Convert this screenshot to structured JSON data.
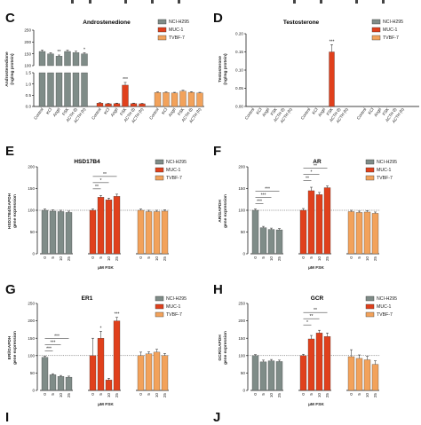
{
  "colors": {
    "NCI-H295": "#7f8c88",
    "MUC-1": "#e0401c",
    "TVBF-7": "#f2a25b"
  },
  "panels": {
    "C": {
      "letter": "C"
    },
    "D": {
      "letter": "D"
    },
    "E": {
      "letter": "E"
    },
    "F": {
      "letter": "F"
    },
    "G": {
      "letter": "G"
    },
    "H": {
      "letter": "H"
    },
    "I": {
      "letter": "I"
    },
    "J": {
      "letter": "J"
    }
  },
  "chart_data": [
    {
      "id": "C",
      "type": "bar",
      "title": "Androstenedione",
      "ylabel": "Androstenedione (ng/mg protein)",
      "axis_break": true,
      "upper_ticks": [
        "250",
        "200",
        "150",
        "100"
      ],
      "lower_ticks": [
        "1.5",
        "1.0",
        "0.5",
        "0.0"
      ],
      "categories": [
        "Control",
        "KCl",
        "AngII",
        "FSK",
        "ACTH (l)",
        "ACTH (h)"
      ],
      "legend": [
        "NCI-H295",
        "MUC-1",
        "TVBF-7"
      ],
      "series": [
        {
          "name": "NCI-H295",
          "values": [
            160,
            150,
            140,
            160,
            155,
            150
          ],
          "errors": [
            6,
            5,
            5,
            6,
            6,
            5
          ],
          "sig": [
            "",
            "",
            "**",
            "",
            "",
            "*"
          ]
        },
        {
          "name": "MUC-1",
          "values": [
            0.15,
            0.12,
            0.13,
            0.95,
            0.13,
            0.12
          ],
          "errors": [
            0.02,
            0.02,
            0.02,
            0.12,
            0.02,
            0.02
          ],
          "sig": [
            "",
            "",
            "",
            "***",
            "",
            ""
          ]
        },
        {
          "name": "TVBF-7",
          "values": [
            0.62,
            0.62,
            0.6,
            0.68,
            0.63,
            0.6
          ],
          "errors": [
            0.03,
            0.03,
            0.03,
            0.04,
            0.03,
            0.03
          ],
          "sig": [
            "",
            "",
            "",
            "",
            "",
            ""
          ]
        }
      ]
    },
    {
      "id": "D",
      "type": "bar",
      "title": "Testosterone",
      "ylabel": "Testosterone (ng/mg protein)",
      "yticks": [
        "0.20",
        "0.15",
        "0.10",
        "0.05",
        "0.00"
      ],
      "ylim": [
        0,
        0.2
      ],
      "categories": [
        "Control",
        "KCl",
        "AngII",
        "FSK",
        "ACTH (l)",
        "ACTH (h)"
      ],
      "legend": [
        "NCI-H295",
        "MUC-1",
        "TVBF-7"
      ],
      "series": [
        {
          "name": "NCI-H295",
          "values": [
            0,
            0,
            0,
            0,
            0,
            0
          ],
          "errors": [
            0,
            0,
            0,
            0,
            0,
            0
          ],
          "sig": [
            "",
            "",
            "",
            "",
            "",
            ""
          ]
        },
        {
          "name": "MUC-1",
          "values": [
            0,
            0,
            0,
            0.15,
            0,
            0
          ],
          "errors": [
            0,
            0,
            0,
            0.02,
            0,
            0
          ],
          "sig": [
            "",
            "",
            "",
            "***",
            "",
            ""
          ]
        },
        {
          "name": "TVBF-7",
          "values": [
            0,
            0,
            0,
            0,
            0,
            0
          ],
          "errors": [
            0,
            0,
            0,
            0,
            0,
            0
          ],
          "sig": [
            "",
            "",
            "",
            "",
            "",
            ""
          ]
        }
      ]
    },
    {
      "id": "E",
      "type": "bar",
      "title": "HSD17B4",
      "ylabel": "HSD17B4/GAPDH gene expression",
      "xlabel": "µM FSK",
      "yticks": [
        "200",
        "150",
        "100",
        "50",
        "0"
      ],
      "ylim": [
        0,
        200
      ],
      "doses": [
        "0",
        "5",
        "10",
        "25"
      ],
      "legend": [
        "NCI-H295",
        "MUC-1",
        "TVBF-7"
      ],
      "series": [
        {
          "name": "NCI-H295",
          "values": [
            100,
            98,
            97,
            95
          ],
          "errors": [
            3,
            3,
            3,
            3
          ]
        },
        {
          "name": "MUC-1",
          "values": [
            100,
            130,
            124,
            132
          ],
          "errors": [
            3,
            4,
            4,
            5
          ]
        },
        {
          "name": "TVBF-7",
          "values": [
            100,
            97,
            97,
            98
          ],
          "errors": [
            3,
            3,
            3,
            3
          ]
        }
      ],
      "brackets": [
        {
          "series": 1,
          "from": 0,
          "to": 1,
          "level": 0,
          "label": "**"
        },
        {
          "series": 1,
          "from": 0,
          "to": 2,
          "level": 1,
          "label": "*"
        },
        {
          "series": 1,
          "from": 0,
          "to": 3,
          "level": 2,
          "label": "**"
        }
      ]
    },
    {
      "id": "F",
      "type": "bar",
      "title": "AR",
      "ylabel": "AR/GAPDH gene expression",
      "xlabel": "µM FSK",
      "yticks": [
        "200",
        "150",
        "100",
        "50",
        "0"
      ],
      "ylim": [
        0,
        200
      ],
      "doses": [
        "0",
        "5",
        "10",
        "25"
      ],
      "legend": [
        "NCI-H295",
        "MUC-1",
        "TVBF-7"
      ],
      "series": [
        {
          "name": "NCI-H295",
          "values": [
            100,
            60,
            56,
            55
          ],
          "errors": [
            3,
            3,
            3,
            3
          ]
        },
        {
          "name": "MUC-1",
          "values": [
            100,
            145,
            136,
            152
          ],
          "errors": [
            4,
            8,
            5,
            4
          ]
        },
        {
          "name": "TVBF-7",
          "values": [
            97,
            95,
            96,
            93
          ],
          "errors": [
            3,
            3,
            3,
            3
          ]
        }
      ],
      "brackets": [
        {
          "series": 0,
          "from": 0,
          "to": 1,
          "level": 0,
          "label": "***"
        },
        {
          "series": 0,
          "from": 0,
          "to": 2,
          "level": 1,
          "label": "***"
        },
        {
          "series": 0,
          "from": 0,
          "to": 3,
          "level": 2,
          "label": "***"
        },
        {
          "series": 1,
          "from": 0,
          "to": 1,
          "level": 0,
          "label": "**"
        },
        {
          "series": 1,
          "from": 0,
          "to": 2,
          "level": 1,
          "label": "*"
        },
        {
          "series": 1,
          "from": 0,
          "to": 3,
          "level": 2,
          "label": "**"
        }
      ]
    },
    {
      "id": "G",
      "type": "bar",
      "title": "ER1",
      "ylabel": "ERl/GAPDH gene expression",
      "xlabel": "µM FSK",
      "yticks": [
        "250",
        "200",
        "150",
        "100",
        "50",
        "0"
      ],
      "ylim": [
        0,
        250
      ],
      "doses": [
        "0",
        "5",
        "10",
        "25"
      ],
      "legend": [
        "NCI-H295",
        "MUC-1",
        "TVBF-7"
      ],
      "series": [
        {
          "name": "NCI-H295",
          "values": [
            95,
            45,
            40,
            38
          ],
          "errors": [
            3,
            3,
            3,
            3
          ]
        },
        {
          "name": "MUC-1",
          "values": [
            100,
            150,
            30,
            200
          ],
          "errors": [
            50,
            20,
            5,
            10
          ]
        },
        {
          "name": "TVBF-7",
          "values": [
            100,
            105,
            110,
            100
          ],
          "errors": [
            10,
            6,
            8,
            6
          ]
        }
      ],
      "brackets": [
        {
          "series": 0,
          "from": 0,
          "to": 1,
          "level": 0,
          "label": "***"
        },
        {
          "series": 0,
          "from": 0,
          "to": 2,
          "level": 1,
          "label": "***"
        },
        {
          "series": 0,
          "from": 0,
          "to": 3,
          "level": 2,
          "label": "***"
        }
      ],
      "bar_marks": [
        {
          "series": 1,
          "bar": 1,
          "label": "*"
        },
        {
          "series": 1,
          "bar": 3,
          "label": "***"
        }
      ]
    },
    {
      "id": "H",
      "type": "bar",
      "title": "GCR",
      "ylabel": "GCR/GAPDH gene expression",
      "xlabel": "µM FSK",
      "yticks": [
        "250",
        "200",
        "150",
        "100",
        "50",
        "0"
      ],
      "ylim": [
        0,
        250
      ],
      "doses": [
        "0",
        "5",
        "10",
        "25"
      ],
      "legend": [
        "NCI-H295",
        "MUC-1",
        "TVBF-7"
      ],
      "series": [
        {
          "name": "NCI-H295",
          "values": [
            100,
            82,
            85,
            83
          ],
          "errors": [
            3,
            5,
            4,
            4
          ]
        },
        {
          "name": "MUC-1",
          "values": [
            100,
            148,
            165,
            155
          ],
          "errors": [
            4,
            10,
            8,
            10
          ]
        },
        {
          "name": "TVBF-7",
          "values": [
            97,
            92,
            88,
            75
          ],
          "errors": [
            20,
            10,
            10,
            10
          ]
        }
      ],
      "brackets": [
        {
          "series": 1,
          "from": 0,
          "to": 1,
          "level": 0,
          "label": "*"
        },
        {
          "series": 1,
          "from": 0,
          "to": 2,
          "level": 1,
          "label": "**"
        },
        {
          "series": 1,
          "from": 0,
          "to": 3,
          "level": 2,
          "label": "**"
        }
      ]
    }
  ]
}
